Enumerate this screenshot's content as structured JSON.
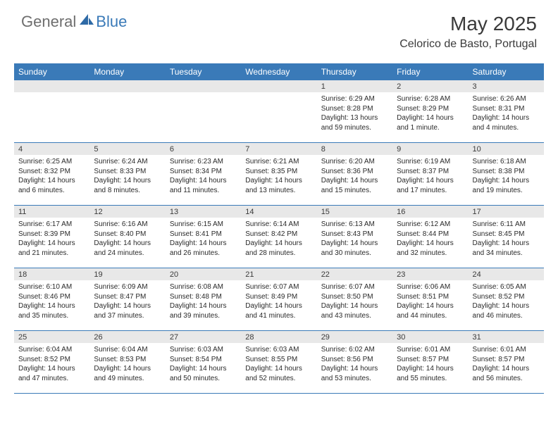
{
  "brand": {
    "text_gray": "General",
    "text_blue": "Blue"
  },
  "title": "May 2025",
  "location": "Celorico de Basto, Portugal",
  "colors": {
    "header_bg": "#3a7ab8",
    "header_text": "#ffffff",
    "daynum_bg": "#e8e8e8",
    "row_border": "#3a7ab8",
    "body_text": "#2a2a2a",
    "logo_gray": "#6e6e6e",
    "logo_blue": "#3a7ab8",
    "page_bg": "#ffffff"
  },
  "day_headers": [
    "Sunday",
    "Monday",
    "Tuesday",
    "Wednesday",
    "Thursday",
    "Friday",
    "Saturday"
  ],
  "weeks": [
    [
      {
        "n": "",
        "sr": "",
        "ss": "",
        "dl": ""
      },
      {
        "n": "",
        "sr": "",
        "ss": "",
        "dl": ""
      },
      {
        "n": "",
        "sr": "",
        "ss": "",
        "dl": ""
      },
      {
        "n": "",
        "sr": "",
        "ss": "",
        "dl": ""
      },
      {
        "n": "1",
        "sr": "Sunrise: 6:29 AM",
        "ss": "Sunset: 8:28 PM",
        "dl": "Daylight: 13 hours and 59 minutes."
      },
      {
        "n": "2",
        "sr": "Sunrise: 6:28 AM",
        "ss": "Sunset: 8:29 PM",
        "dl": "Daylight: 14 hours and 1 minute."
      },
      {
        "n": "3",
        "sr": "Sunrise: 6:26 AM",
        "ss": "Sunset: 8:31 PM",
        "dl": "Daylight: 14 hours and 4 minutes."
      }
    ],
    [
      {
        "n": "4",
        "sr": "Sunrise: 6:25 AM",
        "ss": "Sunset: 8:32 PM",
        "dl": "Daylight: 14 hours and 6 minutes."
      },
      {
        "n": "5",
        "sr": "Sunrise: 6:24 AM",
        "ss": "Sunset: 8:33 PM",
        "dl": "Daylight: 14 hours and 8 minutes."
      },
      {
        "n": "6",
        "sr": "Sunrise: 6:23 AM",
        "ss": "Sunset: 8:34 PM",
        "dl": "Daylight: 14 hours and 11 minutes."
      },
      {
        "n": "7",
        "sr": "Sunrise: 6:21 AM",
        "ss": "Sunset: 8:35 PM",
        "dl": "Daylight: 14 hours and 13 minutes."
      },
      {
        "n": "8",
        "sr": "Sunrise: 6:20 AM",
        "ss": "Sunset: 8:36 PM",
        "dl": "Daylight: 14 hours and 15 minutes."
      },
      {
        "n": "9",
        "sr": "Sunrise: 6:19 AM",
        "ss": "Sunset: 8:37 PM",
        "dl": "Daylight: 14 hours and 17 minutes."
      },
      {
        "n": "10",
        "sr": "Sunrise: 6:18 AM",
        "ss": "Sunset: 8:38 PM",
        "dl": "Daylight: 14 hours and 19 minutes."
      }
    ],
    [
      {
        "n": "11",
        "sr": "Sunrise: 6:17 AM",
        "ss": "Sunset: 8:39 PM",
        "dl": "Daylight: 14 hours and 21 minutes."
      },
      {
        "n": "12",
        "sr": "Sunrise: 6:16 AM",
        "ss": "Sunset: 8:40 PM",
        "dl": "Daylight: 14 hours and 24 minutes."
      },
      {
        "n": "13",
        "sr": "Sunrise: 6:15 AM",
        "ss": "Sunset: 8:41 PM",
        "dl": "Daylight: 14 hours and 26 minutes."
      },
      {
        "n": "14",
        "sr": "Sunrise: 6:14 AM",
        "ss": "Sunset: 8:42 PM",
        "dl": "Daylight: 14 hours and 28 minutes."
      },
      {
        "n": "15",
        "sr": "Sunrise: 6:13 AM",
        "ss": "Sunset: 8:43 PM",
        "dl": "Daylight: 14 hours and 30 minutes."
      },
      {
        "n": "16",
        "sr": "Sunrise: 6:12 AM",
        "ss": "Sunset: 8:44 PM",
        "dl": "Daylight: 14 hours and 32 minutes."
      },
      {
        "n": "17",
        "sr": "Sunrise: 6:11 AM",
        "ss": "Sunset: 8:45 PM",
        "dl": "Daylight: 14 hours and 34 minutes."
      }
    ],
    [
      {
        "n": "18",
        "sr": "Sunrise: 6:10 AM",
        "ss": "Sunset: 8:46 PM",
        "dl": "Daylight: 14 hours and 35 minutes."
      },
      {
        "n": "19",
        "sr": "Sunrise: 6:09 AM",
        "ss": "Sunset: 8:47 PM",
        "dl": "Daylight: 14 hours and 37 minutes."
      },
      {
        "n": "20",
        "sr": "Sunrise: 6:08 AM",
        "ss": "Sunset: 8:48 PM",
        "dl": "Daylight: 14 hours and 39 minutes."
      },
      {
        "n": "21",
        "sr": "Sunrise: 6:07 AM",
        "ss": "Sunset: 8:49 PM",
        "dl": "Daylight: 14 hours and 41 minutes."
      },
      {
        "n": "22",
        "sr": "Sunrise: 6:07 AM",
        "ss": "Sunset: 8:50 PM",
        "dl": "Daylight: 14 hours and 43 minutes."
      },
      {
        "n": "23",
        "sr": "Sunrise: 6:06 AM",
        "ss": "Sunset: 8:51 PM",
        "dl": "Daylight: 14 hours and 44 minutes."
      },
      {
        "n": "24",
        "sr": "Sunrise: 6:05 AM",
        "ss": "Sunset: 8:52 PM",
        "dl": "Daylight: 14 hours and 46 minutes."
      }
    ],
    [
      {
        "n": "25",
        "sr": "Sunrise: 6:04 AM",
        "ss": "Sunset: 8:52 PM",
        "dl": "Daylight: 14 hours and 47 minutes."
      },
      {
        "n": "26",
        "sr": "Sunrise: 6:04 AM",
        "ss": "Sunset: 8:53 PM",
        "dl": "Daylight: 14 hours and 49 minutes."
      },
      {
        "n": "27",
        "sr": "Sunrise: 6:03 AM",
        "ss": "Sunset: 8:54 PM",
        "dl": "Daylight: 14 hours and 50 minutes."
      },
      {
        "n": "28",
        "sr": "Sunrise: 6:03 AM",
        "ss": "Sunset: 8:55 PM",
        "dl": "Daylight: 14 hours and 52 minutes."
      },
      {
        "n": "29",
        "sr": "Sunrise: 6:02 AM",
        "ss": "Sunset: 8:56 PM",
        "dl": "Daylight: 14 hours and 53 minutes."
      },
      {
        "n": "30",
        "sr": "Sunrise: 6:01 AM",
        "ss": "Sunset: 8:57 PM",
        "dl": "Daylight: 14 hours and 55 minutes."
      },
      {
        "n": "31",
        "sr": "Sunrise: 6:01 AM",
        "ss": "Sunset: 8:57 PM",
        "dl": "Daylight: 14 hours and 56 minutes."
      }
    ]
  ]
}
